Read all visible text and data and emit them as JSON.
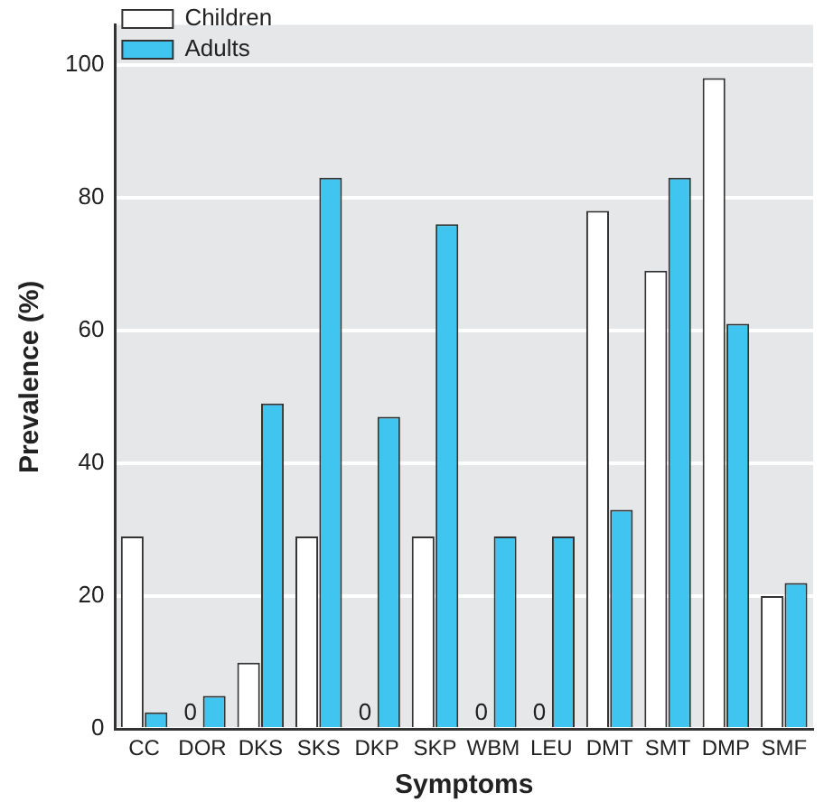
{
  "chart_data": {
    "type": "bar",
    "xlabel": "Symptoms",
    "ylabel": "Prevalence (%)",
    "categories": [
      "CC",
      "DOR",
      "DKS",
      "SKS",
      "DKP",
      "SKP",
      "WBM",
      "LEU",
      "DMT",
      "SMT",
      "DMP",
      "SMF"
    ],
    "series": [
      {
        "name": "Children",
        "color": "#ffffff",
        "values": [
          29,
          0,
          10,
          29,
          0,
          29,
          0,
          0,
          78,
          69,
          98,
          20
        ],
        "value_labels": [
          null,
          "0",
          null,
          null,
          "0",
          null,
          "0",
          "0",
          null,
          null,
          null,
          null
        ]
      },
      {
        "name": "Adults",
        "color": "#40c4f0",
        "values": [
          2.5,
          5,
          49,
          83,
          47,
          76,
          29,
          29,
          33,
          83,
          61,
          22
        ]
      }
    ],
    "ylim": [
      0,
      106
    ],
    "yticks": [
      0,
      20,
      40,
      60,
      80,
      100
    ],
    "grid": "y",
    "legend": "top left"
  }
}
